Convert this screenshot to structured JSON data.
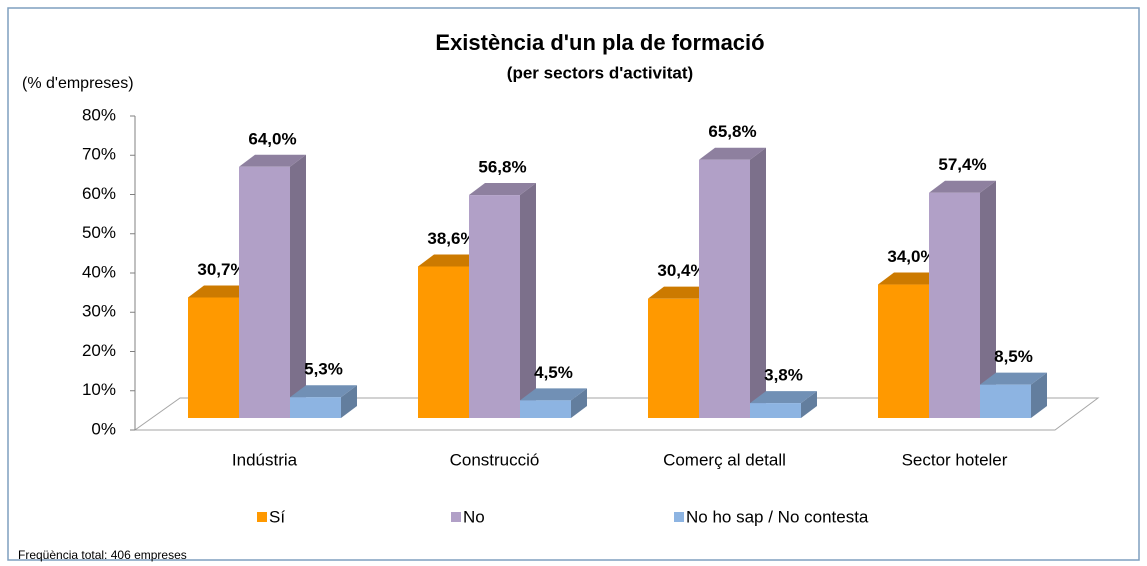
{
  "chart_data": {
    "type": "bar3d",
    "title": "Existència d'un pla de formació",
    "subtitle": "(per sectors d'activitat)",
    "ylabel": "(% d'empreses)",
    "footnote": "Freqüència total: 406 empreses",
    "categories": [
      "Indústria",
      "Construcció",
      "Comerç al detall",
      "Sector hoteler"
    ],
    "series": [
      {
        "name": "Sí",
        "color": "#ff9900",
        "values": [
          30.7,
          38.6,
          30.4,
          34.0
        ],
        "value_labels": [
          "30,7%",
          "38,6%",
          "30,4%",
          "34,0%"
        ]
      },
      {
        "name": "No",
        "color": "#b1a0c7",
        "values": [
          64.0,
          56.8,
          65.8,
          57.4
        ],
        "value_labels": [
          "64,0%",
          "56,8%",
          "65,8%",
          "57,4%"
        ]
      },
      {
        "name": "No ho sap / No contesta",
        "color": "#8db4e2",
        "values": [
          5.3,
          4.5,
          3.8,
          8.5
        ],
        "value_labels": [
          "5,3%",
          "4,5%",
          "3,8%",
          "8,5%"
        ]
      }
    ],
    "ylim": [
      0,
      80
    ],
    "yticks": [
      {
        "value": 0,
        "label": "0%"
      },
      {
        "value": 10,
        "label": "10%"
      },
      {
        "value": 20,
        "label": "20%"
      },
      {
        "value": 30,
        "label": "30%"
      },
      {
        "value": 40,
        "label": "40%"
      },
      {
        "value": 50,
        "label": "50%"
      },
      {
        "value": 60,
        "label": "60%"
      },
      {
        "value": 70,
        "label": "70%"
      },
      {
        "value": 80,
        "label": "80%"
      }
    ],
    "legend": "bottom"
  }
}
